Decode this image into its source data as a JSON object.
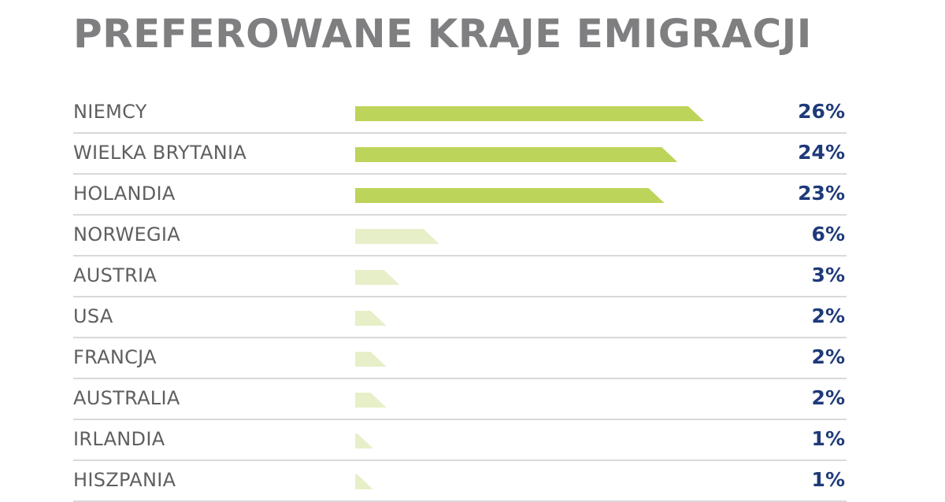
{
  "chart_data": {
    "type": "bar",
    "orientation": "horizontal",
    "title": "PREFEROWANE KRAJE EMIGRACJI",
    "categories": [
      "NIEMCY",
      "WIELKA BRYTANIA",
      "HOLANDIA",
      "NORWEGIA",
      "AUSTRIA",
      "USA",
      "FRANCJA",
      "AUSTRALIA",
      "IRLANDIA",
      "HISZPANIA"
    ],
    "values": [
      26,
      24,
      23,
      6,
      3,
      2,
      2,
      2,
      1,
      1
    ],
    "value_labels": [
      "26%",
      "24%",
      "23%",
      "6%",
      "3%",
      "2%",
      "2%",
      "2%",
      "1%",
      "1%"
    ],
    "unit": "%",
    "grid": false,
    "legend": "none"
  },
  "colors": {
    "bar_strong": "#bdd45a",
    "bar_light": "#e7efc9",
    "title": "#7f7f81",
    "label": "#5f5f61",
    "value": "#1f3a7a",
    "divider": "#d9d9d9"
  }
}
